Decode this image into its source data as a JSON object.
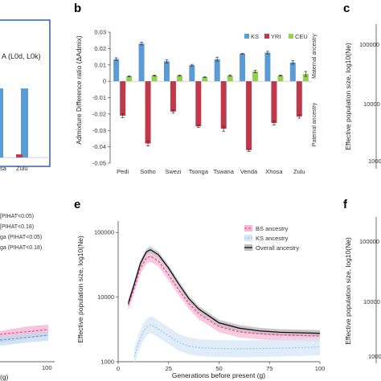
{
  "panels": {
    "a_fragment": {
      "title_fragment": "A (L0d, L0k)",
      "tick_label": "Zulu",
      "tick_label_left": "sa"
    },
    "b": {
      "letter": "b",
      "ylabel": "Admixture Difference ratio (ΔAdmix)",
      "right_label_top": "Maternal ancestry",
      "right_label_bottom": "Paternal ancestry"
    },
    "c": {
      "letter": "c",
      "ylabel": "Effective population size, log10(Ne)",
      "ticks": [
        "100000",
        "10000",
        "1000"
      ]
    },
    "d_fragment": {
      "legend": [
        "[PIHAT<0.05)",
        "[PIHAT<0.18)",
        "ga (PIHAT<0.05)",
        "ga (PIHAT<0.18)"
      ],
      "x_ticks": [
        "100"
      ],
      "xlabel_fragment": "(g)"
    },
    "e": {
      "letter": "e",
      "ylabel": "Effective population size, log10(Ne)",
      "xlabel": "Generations before present (g)"
    },
    "f": {
      "letter": "f",
      "ylabel": "Effective population size, log10(Ne)",
      "ticks": [
        "100000",
        "10000",
        "1000"
      ]
    }
  },
  "colors": {
    "ks": "#5b9bd5",
    "yri": "#c0394b",
    "ceu": "#92d050",
    "bs": "#e8519a",
    "ks_line": "#9fc6e8",
    "overall": "#111111",
    "frame_blue": "#2f5fb3"
  },
  "chart_data": [
    {
      "type": "bar",
      "panel": "b",
      "categories": [
        "Pedi",
        "Sotho",
        "Swezi",
        "Tsonga",
        "Tswana",
        "Venda",
        "Xhosa",
        "Zulu"
      ],
      "series": [
        {
          "name": "KS",
          "values": [
            0.0135,
            0.023,
            0.0122,
            0.0098,
            0.0135,
            0.0168,
            0.0175,
            0.0115
          ]
        },
        {
          "name": "YRI",
          "values": [
            -0.021,
            -0.038,
            -0.0185,
            -0.0275,
            -0.029,
            -0.042,
            -0.0255,
            -0.0215
          ]
        },
        {
          "name": "CEU",
          "values": [
            0.003,
            0.0035,
            0.0035,
            0.0025,
            0.0035,
            0.006,
            0.0035,
            0.0045
          ]
        }
      ],
      "errors": [
        [
          0.0008,
          0.0008,
          0.001,
          0.0005,
          0.0012,
          0.0003,
          0.0008,
          0.001
        ],
        [
          0.0012,
          0.0015,
          0.001,
          0.0006,
          0.0015,
          0.0008,
          0.0012,
          0.001
        ],
        [
          0.0003,
          0.0003,
          0.0003,
          0.0002,
          0.0004,
          0.0008,
          0.0003,
          0.0015
        ]
      ],
      "y_ticks": [
        "0.03",
        "0.02",
        "0.01",
        "0",
        "-0.01",
        "-0.02",
        "-0.03",
        "-0.04",
        "-0.05"
      ],
      "ylim": [
        -0.05,
        0.03
      ],
      "ylabel": "Admixture Difference ratio (ΔAdmix)",
      "legend_position": "top-right"
    },
    {
      "type": "line",
      "panel": "e",
      "series": [
        {
          "name": "BS ancestry",
          "x": [
            5,
            8,
            11,
            14,
            16,
            20,
            25,
            30,
            35,
            40,
            50,
            60,
            70,
            80,
            90,
            100
          ],
          "y": [
            7500,
            14000,
            28000,
            40000,
            43000,
            36000,
            22000,
            13000,
            8000,
            5500,
            3500,
            2900,
            2700,
            2600,
            2550,
            2500
          ]
        },
        {
          "name": "KS ancestry",
          "x": [
            8,
            10,
            12,
            14,
            16,
            18,
            22,
            26,
            30,
            35,
            40,
            50,
            60,
            70,
            80,
            90,
            100
          ],
          "y": [
            1200,
            1900,
            2700,
            3400,
            3700,
            3500,
            2900,
            2400,
            2000,
            1750,
            1650,
            1600,
            1580,
            1600,
            1620,
            1650,
            1700
          ]
        },
        {
          "name": "Overall ancestry",
          "x": [
            5,
            8,
            11,
            14,
            16,
            20,
            25,
            30,
            35,
            40,
            50,
            60,
            70,
            80,
            90,
            100
          ],
          "y": [
            8000,
            16000,
            33000,
            50000,
            54000,
            45000,
            28000,
            16000,
            9500,
            6500,
            4000,
            3300,
            3000,
            2850,
            2800,
            2750
          ]
        }
      ],
      "x_ticks": [
        "0",
        "25",
        "50",
        "75",
        "100"
      ],
      "y_ticks": [
        "100000",
        "10000",
        "1000"
      ],
      "xlim": [
        0,
        100
      ],
      "ylim": [
        1000,
        150000
      ],
      "log_y": true,
      "xlabel": "Generations before present (g)",
      "ylabel": "Effective population size, log10(Ne)",
      "legend_position": "top-right"
    }
  ]
}
